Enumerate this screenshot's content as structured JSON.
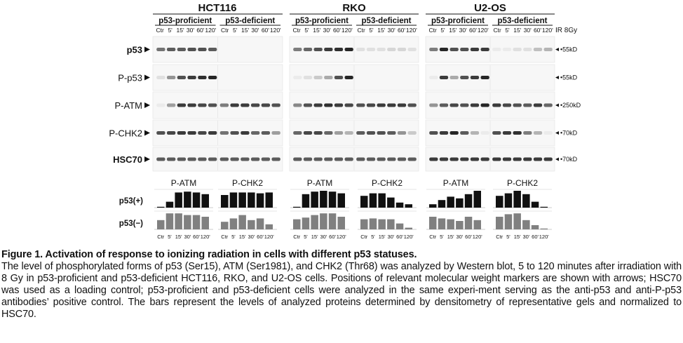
{
  "figure": {
    "cell_lines": [
      "HCT116",
      "RKO",
      "U2-OS"
    ],
    "groups": [
      "p53-proficient",
      "p53-deficient"
    ],
    "timepoints": [
      "Ctr",
      "5'",
      "15'",
      "30'",
      "60'",
      "120'"
    ],
    "treatment_label": "IR 8Gy",
    "blot_rows": [
      {
        "label": "p53",
        "marker": "55kD"
      },
      {
        "label": "P-p53",
        "marker": "55kD"
      },
      {
        "label": "P-ATM",
        "marker": "250kD"
      },
      {
        "label": "P-CHK2",
        "marker": "70kD"
      },
      {
        "label": "HSC70",
        "marker": "70kD"
      }
    ],
    "densitometry_titles": [
      "P-ATM",
      "P-CHK2"
    ],
    "densitometry_rows": [
      "p53(+)",
      "p53(−)"
    ],
    "band_color": "#1a1a1a",
    "bar_color_pos": "#111111",
    "bar_color_neg": "#808080"
  },
  "chart_data": {
    "type": "bar",
    "categories": [
      "Ctr",
      "5'",
      "15'",
      "30'",
      "60'",
      "120'"
    ],
    "panels": [
      {
        "cell_line": "HCT116",
        "protein": "P-ATM",
        "series": [
          {
            "name": "p53(+)",
            "values": [
              0.05,
              0.35,
              0.9,
              0.95,
              0.9,
              0.8
            ]
          },
          {
            "name": "p53(−)",
            "values": [
              0.55,
              0.95,
              0.95,
              0.85,
              0.85,
              0.75
            ]
          }
        ]
      },
      {
        "cell_line": "HCT116",
        "protein": "P-CHK2",
        "series": [
          {
            "name": "p53(+)",
            "values": [
              0.75,
              0.9,
              0.9,
              0.9,
              0.85,
              0.9
            ]
          },
          {
            "name": "p53(−)",
            "values": [
              0.45,
              0.65,
              0.85,
              0.55,
              0.65,
              0.3
            ]
          }
        ]
      },
      {
        "cell_line": "RKO",
        "protein": "P-ATM",
        "series": [
          {
            "name": "p53(+)",
            "values": [
              0.05,
              0.8,
              0.95,
              1.0,
              0.95,
              0.85
            ]
          },
          {
            "name": "p53(−)",
            "values": [
              0.6,
              0.7,
              0.85,
              0.95,
              0.95,
              0.75
            ]
          }
        ]
      },
      {
        "cell_line": "RKO",
        "protein": "P-CHK2",
        "series": [
          {
            "name": "p53(+)",
            "values": [
              0.7,
              0.85,
              0.85,
              0.6,
              0.3,
              0.2
            ]
          },
          {
            "name": "p53(−)",
            "values": [
              0.6,
              0.65,
              0.6,
              0.6,
              0.35,
              0.1
            ]
          }
        ]
      },
      {
        "cell_line": "U2-OS",
        "protein": "P-ATM",
        "series": [
          {
            "name": "p53(+)",
            "values": [
              0.2,
              0.45,
              0.65,
              0.55,
              0.8,
              1.0
            ]
          },
          {
            "name": "p53(−)",
            "values": [
              0.75,
              0.65,
              0.6,
              0.5,
              0.75,
              0.55
            ]
          }
        ]
      },
      {
        "cell_line": "U2-OS",
        "protein": "P-CHK2",
        "series": [
          {
            "name": "p53(+)",
            "values": [
              0.7,
              0.85,
              1.0,
              0.8,
              0.35,
              0.05
            ]
          },
          {
            "name": "p53(−)",
            "values": [
              0.75,
              0.9,
              0.95,
              0.55,
              0.25,
              0.05
            ]
          }
        ]
      }
    ],
    "xlabel": "",
    "ylabel": "",
    "ylim": [
      0,
      1
    ]
  },
  "caption": {
    "title": "Figure 1. Activation of response to ionizing radiation in cells with different p53 statuses.",
    "body": "The level of phosphorylated forms of p53 (Ser15), ATM (Ser1981), and CHK2 (Thr68) was analyzed by Western blot, 5 to 120 minutes after irradiation with 8 Gy in p53-proficient and p53-deficient HCT116, RKO, and U2-OS cells. Positions of relevant molecular weight markers are shown with arrows; HSC70 was used as a loading control; p53-proficient and p53-deficient cells were analyzed in the same experi-ment serving as the anti-p53 and anti-P-p53 antibodies’ positive control. The bars represent the levels of analyzed proteins determined by densitometry of representative gels and normalized to HSC70."
  }
}
